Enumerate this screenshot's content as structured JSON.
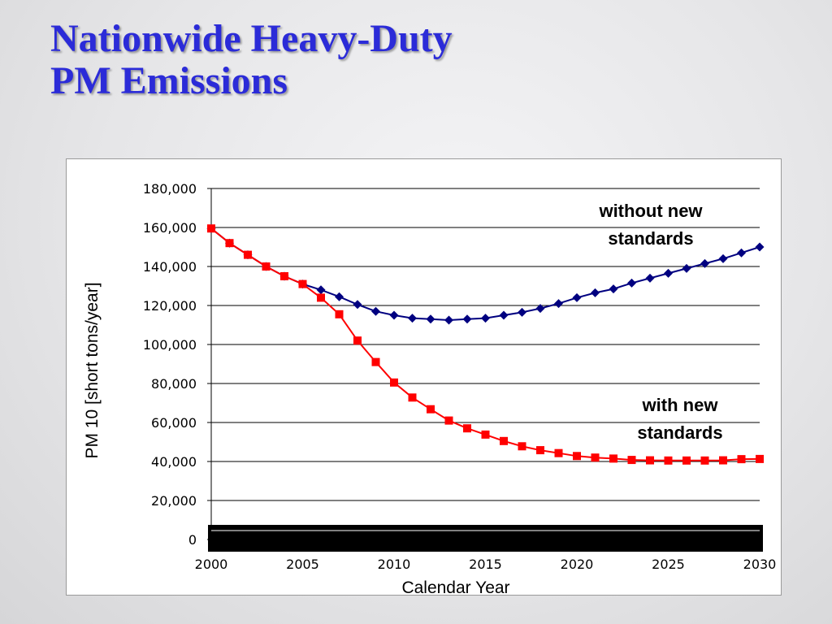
{
  "slide": {
    "title_line1": "Nationwide Heavy-Duty",
    "title_line2": "PM Emissions"
  },
  "chart_data": {
    "type": "line",
    "title": "",
    "xlabel": "Calendar Year",
    "ylabel": "PM 10 [short tons/year]",
    "xlim": [
      2000,
      2030
    ],
    "ylim": [
      0,
      180000
    ],
    "xticks": [
      2000,
      2005,
      2010,
      2015,
      2020,
      2025,
      2030
    ],
    "xtick_labels": [
      "2000",
      "2005",
      "2010",
      "2015",
      "2020",
      "2025",
      "2030"
    ],
    "yticks": [
      0,
      20000,
      40000,
      60000,
      80000,
      100000,
      120000,
      140000,
      160000,
      180000
    ],
    "ytick_labels": [
      "0",
      "20,000",
      "40,000",
      "60,000",
      "80,000",
      "100,000",
      "120,000",
      "140,000",
      "160,000",
      "180,000"
    ],
    "grid": "horizontal",
    "x": [
      2000,
      2001,
      2002,
      2003,
      2004,
      2005,
      2006,
      2007,
      2008,
      2009,
      2010,
      2011,
      2012,
      2013,
      2014,
      2015,
      2016,
      2017,
      2018,
      2019,
      2020,
      2021,
      2022,
      2023,
      2024,
      2025,
      2026,
      2027,
      2028,
      2029,
      2030
    ],
    "series": [
      {
        "annotation_line1": "without new",
        "annotation_line2": "standards",
        "color": "#000080",
        "marker": "diamond",
        "values": [
          159500,
          152000,
          146000,
          140000,
          135000,
          131000,
          128000,
          124500,
          120500,
          117000,
          115000,
          113500,
          113000,
          112500,
          113000,
          113500,
          115000,
          116500,
          118500,
          121000,
          124000,
          126500,
          128500,
          131500,
          134000,
          136500,
          139000,
          141500,
          144000,
          147000,
          150000
        ]
      },
      {
        "annotation_line1": "with new",
        "annotation_line2": "standards",
        "color": "#ff0000",
        "marker": "square",
        "values": [
          159500,
          152000,
          146000,
          140000,
          135000,
          131000,
          124000,
          115500,
          102000,
          91000,
          80500,
          72800,
          66800,
          61000,
          57000,
          53800,
          50500,
          47800,
          45800,
          44300,
          42800,
          42000,
          41500,
          40800,
          40600,
          40500,
          40500,
          40500,
          40600,
          41200,
          41300
        ]
      }
    ]
  }
}
